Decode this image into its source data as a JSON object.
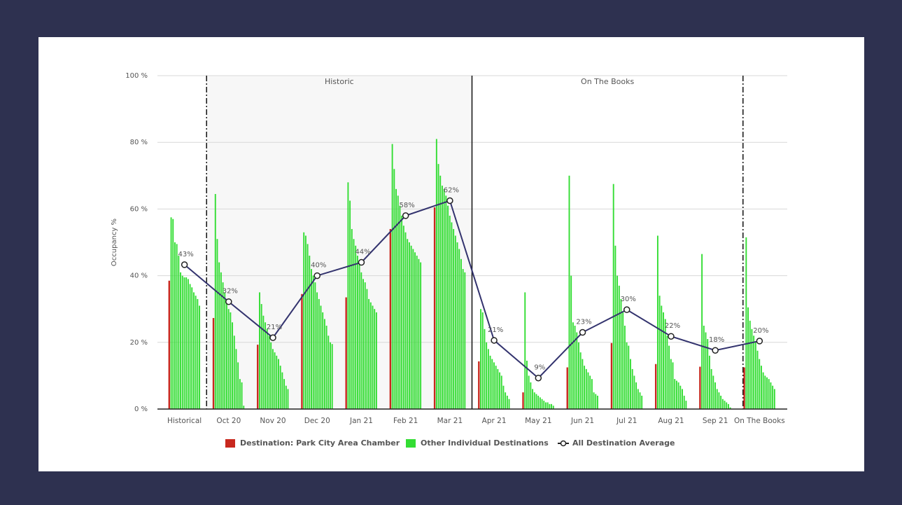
{
  "chart_data": {
    "type": "bar",
    "y_axis_label": "Occupancy %",
    "annotations": [
      "Historic",
      "On The Books"
    ],
    "categories": [
      "Historical",
      "Oct 20",
      "Nov 20",
      "Dec 20",
      "Jan 21",
      "Feb 21",
      "Mar 21",
      "Apr 21",
      "May 21",
      "Jun 21",
      "Jul 21",
      "Aug 21",
      "Sep 21",
      "On The Books"
    ],
    "ylim": [
      0,
      100
    ],
    "yticks": [
      {
        "value": 0,
        "label": "0 %"
      },
      {
        "value": 20,
        "label": "20 %"
      },
      {
        "value": 40,
        "label": "40 %"
      },
      {
        "value": 60,
        "label": "60 %"
      },
      {
        "value": 80,
        "label": "80 %"
      },
      {
        "value": 100,
        "label": "100 %"
      }
    ],
    "grid": true,
    "legend": "bottom",
    "series": [
      {
        "name": "Destination: Park City Area Chamber",
        "color": "#c8281e",
        "values": [
          38.5,
          27.3,
          19.3,
          34.5,
          33.5,
          54,
          60.5,
          14.3,
          5,
          12.5,
          19.8,
          13.5,
          12.7,
          12.5
        ]
      },
      {
        "name": "Other Individual Destinations",
        "color": "#33dd33",
        "values": [
          [
            57.5,
            57,
            50,
            49.5,
            46,
            41,
            40,
            39.5,
            39.5,
            39,
            37.5,
            36.5,
            35,
            34,
            33,
            31
          ],
          [
            64.5,
            51,
            44,
            41,
            38,
            35,
            32,
            30,
            29,
            26,
            22,
            18,
            14,
            9,
            8,
            1
          ],
          [
            35,
            31.5,
            28,
            26,
            24,
            22,
            20,
            18,
            17,
            16,
            15,
            13,
            11,
            9,
            7,
            6
          ],
          [
            53,
            52,
            49.5,
            46,
            42,
            40,
            38,
            35,
            33,
            31,
            29,
            27,
            25,
            22,
            20,
            19.5
          ],
          [
            68,
            62.5,
            54,
            51,
            49,
            46,
            44,
            41,
            39,
            38,
            36,
            33,
            32,
            31,
            30,
            29
          ],
          [
            79.5,
            72,
            66,
            64,
            61,
            58,
            55,
            53,
            51,
            50,
            49,
            48,
            47,
            46,
            45,
            44
          ],
          [
            81,
            73.5,
            70,
            67,
            66,
            64,
            61,
            58,
            56,
            54,
            52,
            50,
            48,
            45,
            42,
            41
          ],
          [
            30,
            29,
            24,
            20,
            18,
            16,
            15,
            14,
            13,
            12,
            11,
            10,
            7,
            5,
            4,
            3
          ],
          [
            35,
            14.5,
            10,
            8,
            6,
            5,
            4.5,
            4,
            3.5,
            3,
            2.5,
            2,
            2,
            1.5,
            1.5,
            1
          ],
          [
            70,
            40,
            26,
            25,
            23,
            20,
            17,
            15,
            13,
            12,
            11,
            10,
            9,
            5,
            4.5,
            4
          ],
          [
            67.5,
            49,
            40,
            37,
            33,
            29,
            25,
            20,
            19,
            15,
            12,
            10,
            8,
            6,
            5,
            4
          ],
          [
            52,
            34,
            31,
            29,
            27,
            22,
            19,
            15,
            14,
            9,
            8.5,
            8,
            7,
            6,
            4,
            2.5
          ],
          [
            46.5,
            25,
            23,
            21,
            16,
            12,
            10,
            8,
            6,
            5,
            4,
            3,
            2.5,
            2,
            1.5,
            0.5
          ],
          [
            51.5,
            30.5,
            26.5,
            24,
            22,
            20,
            17.5,
            15,
            13,
            11,
            10,
            9.5,
            9,
            8,
            7,
            6
          ]
        ]
      },
      {
        "name": "All Destination Average",
        "color": "#33336e",
        "type": "line",
        "values": [
          43.3,
          32.2,
          21.4,
          40,
          44,
          58,
          62.5,
          20.6,
          9.3,
          23,
          29.8,
          21.8,
          17.6,
          20.4
        ],
        "value_labels": [
          "43%",
          "32%",
          "21%",
          "40%",
          "44%",
          "58%",
          "62%",
          "21%",
          "9%",
          "23%",
          "30%",
          "22%",
          "18%",
          "20%"
        ]
      }
    ]
  }
}
